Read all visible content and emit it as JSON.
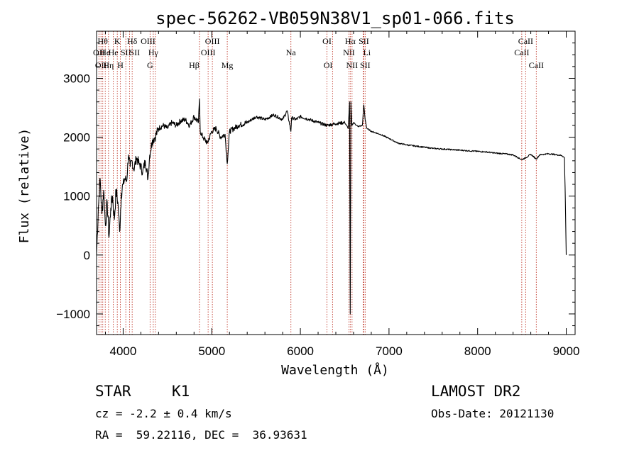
{
  "chart_data": {
    "type": "line",
    "title": "spec-56262-VB059N38V1_sp01-066.fits",
    "xlabel": "Wavelength (Å)",
    "ylabel": "Flux (relative)",
    "xlim": [
      3700,
      9100
    ],
    "ylim": [
      -1350,
      3800
    ],
    "xticks": [
      4000,
      5000,
      6000,
      7000,
      8000,
      9000
    ],
    "yticks": [
      -1000,
      0,
      1000,
      2000,
      3000
    ],
    "grid": false,
    "line_color": "#000000",
    "marker_color": "#c0392b",
    "spectrum": {
      "x": [
        3700,
        3720,
        3740,
        3760,
        3780,
        3800,
        3820,
        3840,
        3860,
        3880,
        3900,
        3920,
        3940,
        3960,
        3980,
        4000,
        4020,
        4040,
        4060,
        4080,
        4100,
        4120,
        4150,
        4180,
        4200,
        4220,
        4250,
        4280,
        4300,
        4330,
        4360,
        4400,
        4450,
        4500,
        4550,
        4600,
        4650,
        4700,
        4750,
        4800,
        4850,
        4861,
        4870,
        4900,
        4950,
        5000,
        5050,
        5100,
        5150,
        5175,
        5200,
        5250,
        5300,
        5400,
        5500,
        5600,
        5700,
        5800,
        5850,
        5893,
        5900,
        5950,
        6000,
        6100,
        6200,
        6300,
        6400,
        6500,
        6540,
        6555,
        6563,
        6570,
        6580,
        6600,
        6650,
        6700,
        6716,
        6731,
        6750,
        6800,
        6900,
        7000,
        7100,
        7200,
        7300,
        7400,
        7500,
        7600,
        7700,
        7800,
        7900,
        8000,
        8100,
        8200,
        8300,
        8400,
        8498,
        8542,
        8600,
        8662,
        8700,
        8800,
        8900,
        8950,
        8980,
        8990,
        9000
      ],
      "y": [
        0,
        800,
        1300,
        700,
        1100,
        500,
        900,
        300,
        800,
        1000,
        600,
        1100,
        900,
        400,
        1050,
        1200,
        1300,
        1250,
        1700,
        1500,
        1600,
        1450,
        1650,
        1550,
        1500,
        1400,
        1600,
        1300,
        1700,
        1950,
        2000,
        2150,
        2200,
        2150,
        2250,
        2200,
        2280,
        2300,
        2200,
        2350,
        2250,
        2650,
        2100,
        2000,
        1900,
        2100,
        2150,
        2000,
        2050,
        1550,
        2100,
        2150,
        2200,
        2250,
        2350,
        2300,
        2380,
        2300,
        2450,
        2100,
        2330,
        2300,
        2350,
        2300,
        2250,
        2200,
        2230,
        2250,
        2150,
        2600,
        -1000,
        2600,
        2200,
        2250,
        2180,
        2200,
        2550,
        2300,
        2150,
        2100,
        2050,
        1980,
        1900,
        1870,
        1850,
        1830,
        1810,
        1800,
        1790,
        1780,
        1770,
        1760,
        1750,
        1730,
        1720,
        1700,
        1620,
        1650,
        1710,
        1630,
        1700,
        1720,
        1700,
        1690,
        1650,
        900,
        0
      ]
    },
    "lines": [
      {
        "wave": 3727,
        "label": "OII",
        "row": 2,
        "align": "middle"
      },
      {
        "wave": 3750,
        "label": "OII",
        "row": 3,
        "align": "middle"
      },
      {
        "wave": 3770,
        "label": "Hθ",
        "row": 1,
        "align": "middle"
      },
      {
        "wave": 3798,
        "label": "He",
        "row": 2,
        "align": "middle"
      },
      {
        "wave": 3835,
        "label": "Hη",
        "row": 3,
        "align": "middle"
      },
      {
        "wave": 3889,
        "label": "He",
        "row": 2,
        "align": "middle"
      },
      {
        "wave": 3934,
        "label": "K",
        "row": 1,
        "align": "middle"
      },
      {
        "wave": 3969,
        "label": "H",
        "row": 3,
        "align": "middle"
      },
      {
        "wave": 4030,
        "label": "SII",
        "row": 2,
        "align": "middle"
      },
      {
        "wave": 4102,
        "label": "Hδ",
        "row": 1,
        "align": "middle"
      },
      {
        "wave": 4072,
        "label": "SII",
        "row": 2,
        "align": "start"
      },
      {
        "wave": 4304,
        "label": "G",
        "row": 3,
        "align": "middle"
      },
      {
        "wave": 4340,
        "label": "Hγ",
        "row": 2,
        "align": "middle"
      },
      {
        "wave": 4363,
        "label": "OIII",
        "row": 1,
        "align": "end"
      },
      {
        "wave": 4861,
        "label": "Hβ",
        "row": 3,
        "align": "end"
      },
      {
        "wave": 4959,
        "label": "OIII",
        "row": 2,
        "align": "middle"
      },
      {
        "wave": 5007,
        "label": "OIII",
        "row": 1,
        "align": "middle"
      },
      {
        "wave": 5175,
        "label": "Mg",
        "row": 3,
        "align": "middle"
      },
      {
        "wave": 5893,
        "label": "Na",
        "row": 2,
        "align": "middle"
      },
      {
        "wave": 6300,
        "label": "OI",
        "row": 1,
        "align": "middle"
      },
      {
        "wave": 6363,
        "label": "OI",
        "row": 3,
        "align": "end"
      },
      {
        "wave": 6548,
        "label": "NII",
        "row": 2,
        "align": "middle"
      },
      {
        "wave": 6563,
        "label": "Hα",
        "row": 1,
        "align": "middle"
      },
      {
        "wave": 6583,
        "label": "NII",
        "row": 3,
        "align": "middle"
      },
      {
        "wave": 6708,
        "label": "Li",
        "row": 2,
        "align": "start"
      },
      {
        "wave": 6716,
        "label": "SII",
        "row": 1,
        "align": "middle"
      },
      {
        "wave": 6731,
        "label": "SII",
        "row": 3,
        "align": "middle"
      },
      {
        "wave": 8498,
        "label": "CaII",
        "row": 2,
        "align": "middle"
      },
      {
        "wave": 8542,
        "label": "CaII",
        "row": 1,
        "align": "middle"
      },
      {
        "wave": 8662,
        "label": "CaII",
        "row": 3,
        "align": "middle"
      }
    ]
  },
  "info": {
    "class_label": "STAR",
    "subclass": "K1",
    "cz_text": "cz = -2.2 ± 0.4 km/s",
    "radec_text": "RA =  59.22116, DEC =  36.93631",
    "survey": "LAMOST DR2",
    "obs_date": "Obs-Date: 20121130"
  }
}
